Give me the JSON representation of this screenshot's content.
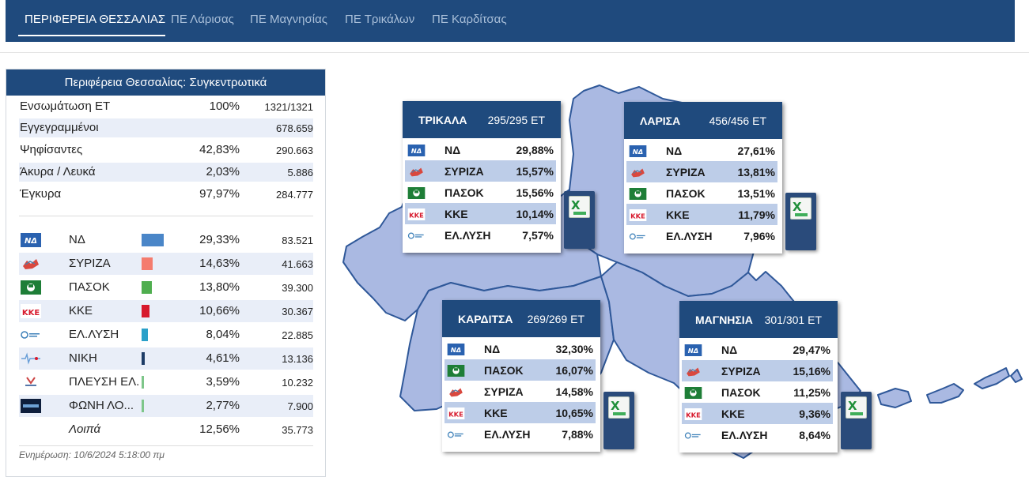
{
  "nav": {
    "tabs": [
      {
        "label": "ΠΕΡΙΦΕΡΕΙΑ ΘΕΣΣΑΛΙΑΣ",
        "active": true
      },
      {
        "label": "ΠΕ Λάρισας",
        "active": false
      },
      {
        "label": "ΠΕ Μαγνησίας",
        "active": false
      },
      {
        "label": "ΠΕ Τρικάλων",
        "active": false
      },
      {
        "label": "ΠΕ Καρδίτσας",
        "active": false
      }
    ]
  },
  "summary": {
    "title": "Περιφέρεια Θεσσαλίας: Συγκεντρωτικά",
    "stats": [
      {
        "label": "Ενσωμάτωση ΕΤ",
        "pct": "100%",
        "value": "1321/1321"
      },
      {
        "label": "Εγγεγραμμένοι",
        "pct": "",
        "value": "678.659"
      },
      {
        "label": "Ψηφίσαντες",
        "pct": "42,83%",
        "value": "290.663"
      },
      {
        "label": "Άκυρα / Λευκά",
        "pct": "2,03%",
        "value": "5.886"
      },
      {
        "label": "Έγκυρα",
        "pct": "97,97%",
        "value": "284.777"
      }
    ],
    "parties": [
      {
        "logo": "nd-logo",
        "name": "ΝΔ",
        "pct": "29,33%",
        "votes": "83.521",
        "share": 0.2933,
        "color": "#4a86c8"
      },
      {
        "logo": "syriza-logo",
        "name": "ΣΥΡΙΖΑ",
        "pct": "14,63%",
        "votes": "41.663",
        "share": 0.1463,
        "color": "#f47c6e"
      },
      {
        "logo": "pasok-logo",
        "name": "ΠΑΣΟΚ",
        "pct": "13,80%",
        "votes": "39.300",
        "share": 0.138,
        "color": "#4fae4f"
      },
      {
        "logo": "kke-logo",
        "name": "ΚΚΕ",
        "pct": "10,66%",
        "votes": "30.367",
        "share": 0.1066,
        "color": "#d7192c"
      },
      {
        "logo": "elliniki-lysi-logo",
        "name": "ΕΛ.ΛΥΣΗ",
        "pct": "8,04%",
        "votes": "22.885",
        "share": 0.0804,
        "color": "#2aa0c9"
      },
      {
        "logo": "niki-logo",
        "name": "ΝΙΚΗ",
        "pct": "4,61%",
        "votes": "13.136",
        "share": 0.0461,
        "color": "#1d3c66"
      },
      {
        "logo": "plefsi-logo",
        "name": "ΠΛΕΥΣΗ ΕΛ.",
        "pct": "3,59%",
        "votes": "10.232",
        "share": 0.0359,
        "color": "#7ec68a"
      },
      {
        "logo": "foni-logikis-logo",
        "name": "ΦΩΝΗ ΛΟ...",
        "pct": "2,77%",
        "votes": "7.900",
        "share": 0.0277,
        "color": "#7ec68a"
      },
      {
        "logo": "",
        "name": "Λοιπά",
        "pct": "12,56%",
        "votes": "35.773",
        "share": 0,
        "color": "#ffffff",
        "italic": true
      }
    ],
    "updated": "Ενημέρωση: 10/6/2024 5:18:00 πμ"
  },
  "regions": [
    {
      "id": "trikala",
      "name": "ΤΡΙΚΑΛΑ",
      "et": "295/295 ΕΤ",
      "rows": [
        {
          "logo": "nd-logo",
          "party": "ΝΔ",
          "pct": "29,88%"
        },
        {
          "logo": "syriza-logo",
          "party": "ΣΥΡΙΖΑ",
          "pct": "15,57%"
        },
        {
          "logo": "pasok-logo",
          "party": "ΠΑΣΟΚ",
          "pct": "15,56%"
        },
        {
          "logo": "kke-logo",
          "party": "ΚΚΕ",
          "pct": "10,14%"
        },
        {
          "logo": "elliniki-lysi-logo",
          "party": "ΕΛ.ΛΥΣΗ",
          "pct": "7,57%"
        }
      ]
    },
    {
      "id": "larisa",
      "name": "ΛΑΡΙΣΑ",
      "et": "456/456 ΕΤ",
      "rows": [
        {
          "logo": "nd-logo",
          "party": "ΝΔ",
          "pct": "27,61%"
        },
        {
          "logo": "syriza-logo",
          "party": "ΣΥΡΙΖΑ",
          "pct": "13,81%"
        },
        {
          "logo": "pasok-logo",
          "party": "ΠΑΣΟΚ",
          "pct": "13,51%"
        },
        {
          "logo": "kke-logo",
          "party": "ΚΚΕ",
          "pct": "11,79%"
        },
        {
          "logo": "elliniki-lysi-logo",
          "party": "ΕΛ.ΛΥΣΗ",
          "pct": "7,96%"
        }
      ]
    },
    {
      "id": "karditsa",
      "name": "ΚΑΡΔΙΤΣΑ",
      "et": "269/269 ΕΤ",
      "rows": [
        {
          "logo": "nd-logo",
          "party": "ΝΔ",
          "pct": "32,30%"
        },
        {
          "logo": "pasok-logo",
          "party": "ΠΑΣΟΚ",
          "pct": "16,07%"
        },
        {
          "logo": "syriza-logo",
          "party": "ΣΥΡΙΖΑ",
          "pct": "14,58%"
        },
        {
          "logo": "kke-logo",
          "party": "ΚΚΕ",
          "pct": "10,65%"
        },
        {
          "logo": "elliniki-lysi-logo",
          "party": "ΕΛ.ΛΥΣΗ",
          "pct": "7,88%"
        }
      ]
    },
    {
      "id": "magnisia",
      "name": "ΜΑΓΝΗΣΙΑ",
      "et": "301/301 ΕΤ",
      "rows": [
        {
          "logo": "nd-logo",
          "party": "ΝΔ",
          "pct": "29,47%"
        },
        {
          "logo": "syriza-logo",
          "party": "ΣΥΡΙΖΑ",
          "pct": "15,16%"
        },
        {
          "logo": "pasok-logo",
          "party": "ΠΑΣΟΚ",
          "pct": "11,25%"
        },
        {
          "logo": "kke-logo",
          "party": "ΚΚΕ",
          "pct": "9,36%"
        },
        {
          "logo": "elliniki-lysi-logo",
          "party": "ΕΛ.ΛΥΣΗ",
          "pct": "8,64%"
        }
      ]
    }
  ],
  "download_icon": "excel-download-icon",
  "colors": {
    "navy": "#1f4a7d",
    "map_fill": "#aab9e2",
    "map_stroke": "#2f5899",
    "row_shade": "#e9eef8"
  }
}
